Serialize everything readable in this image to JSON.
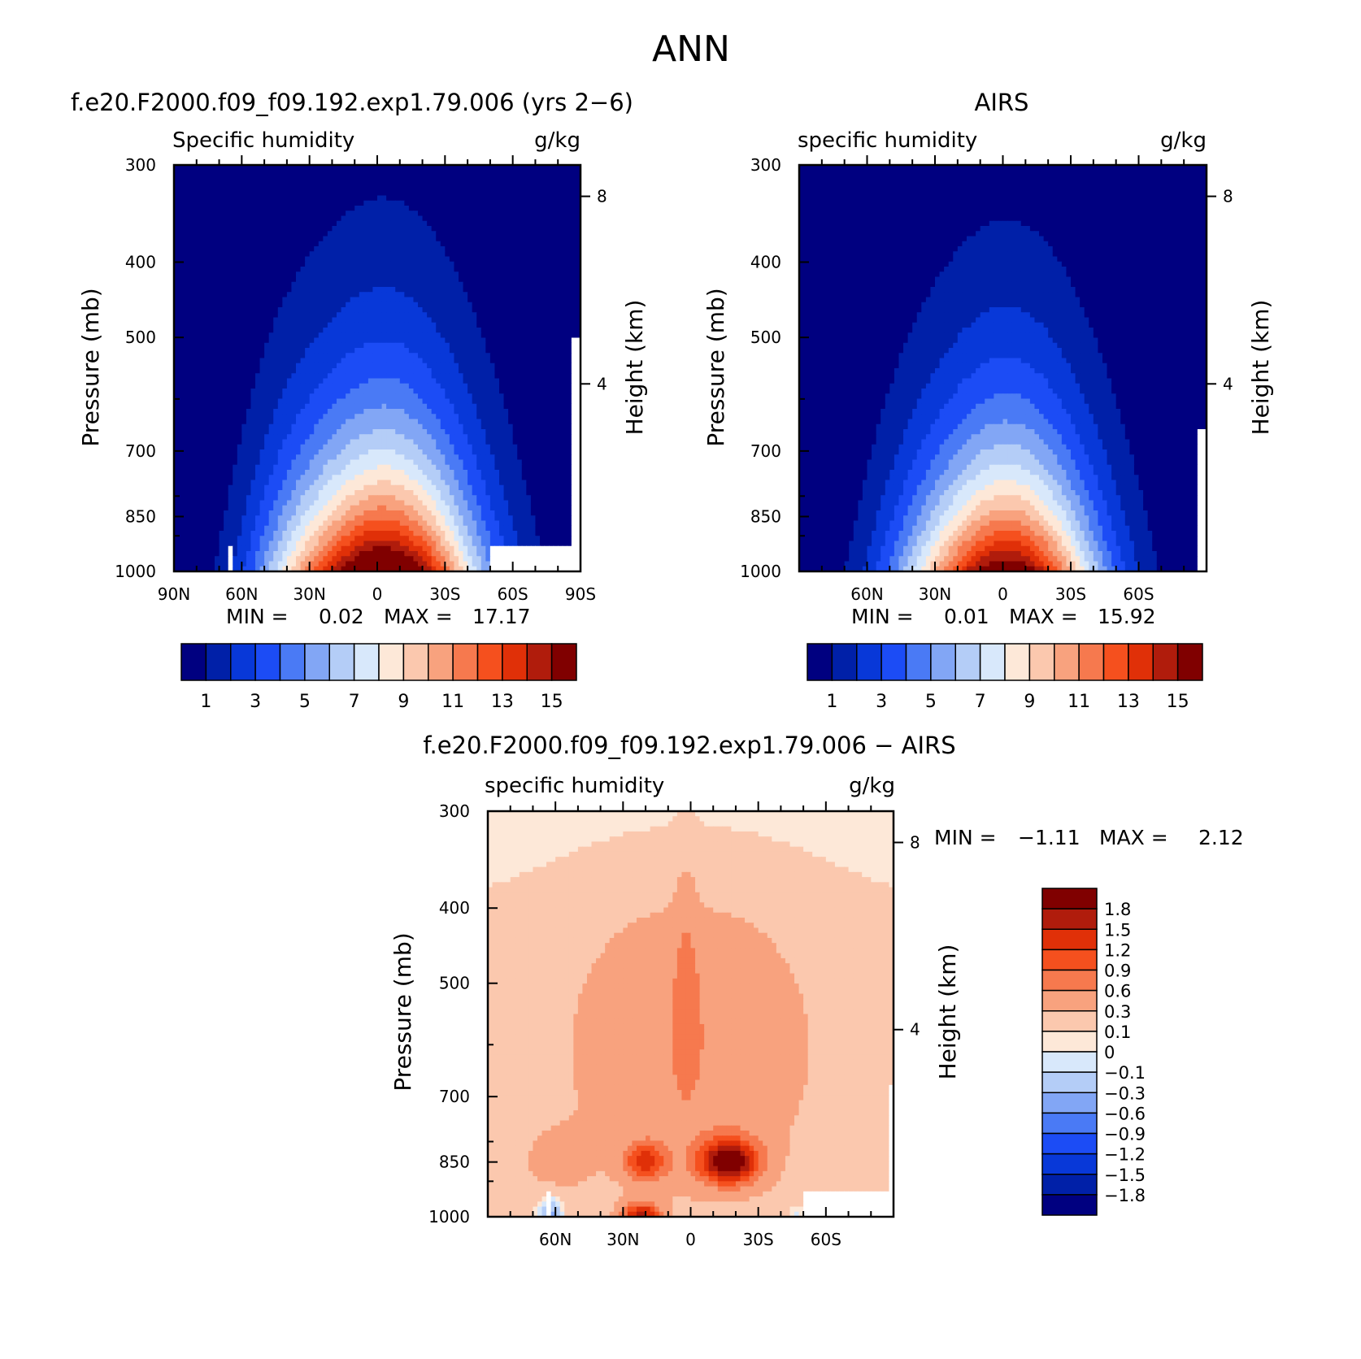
{
  "figure": {
    "title": "ANN"
  },
  "colors": {
    "abs_levels": [
      "#000080",
      "#0020a8",
      "#0838d8",
      "#1c4cf5",
      "#4a7af5",
      "#82a6f5",
      "#b4cdf7",
      "#d8e8fb",
      "#fde8d8",
      "#fbc8ae",
      "#f8a27e",
      "#f6794e",
      "#f5501e",
      "#e03008",
      "#b01c0c",
      "#800000"
    ],
    "diff_levels": [
      "#000080",
      "#0020a8",
      "#0838d8",
      "#1c4cf5",
      "#4a7af5",
      "#82a6f5",
      "#b4cdf7",
      "#d8e8fb",
      "#fde8d8",
      "#fbc8ae",
      "#f8a27e",
      "#f6794e",
      "#f5501e",
      "#e03008",
      "#b01c0c",
      "#800000"
    ]
  },
  "chart_data": [
    {
      "type": "heatmap",
      "panel_title": "f.e20.F2000.f09_f09.192.exp1.79.006 (yrs 2−6)",
      "left_label": "Specific humidity",
      "right_label": "g/kg",
      "ylabel": "Pressure (mb)",
      "y2label": "Height (km)",
      "xticks": [
        "90N",
        "60N",
        "30N",
        "0",
        "30S",
        "60S",
        "90S"
      ],
      "xlim": [
        90,
        -90
      ],
      "yticks": [
        "300",
        "400",
        "500",
        "700",
        "850",
        "1000"
      ],
      "ylim": [
        1000,
        300
      ],
      "y2ticks": [
        "8",
        "4"
      ],
      "min_label": "MIN =",
      "min_value": "0.02",
      "max_label": "MAX =",
      "max_value": "17.17",
      "colorbar_labels": [
        "1",
        "3",
        "5",
        "7",
        "9",
        "11",
        "13",
        "15"
      ],
      "levels": [
        1,
        2,
        3,
        4,
        5,
        6,
        7,
        8,
        9,
        10,
        11,
        12,
        13,
        14,
        15
      ]
    },
    {
      "type": "heatmap",
      "panel_title": "AIRS",
      "left_label": "specific humidity",
      "right_label": "g/kg",
      "ylabel": "Pressure (mb)",
      "y2label": "Height (km)",
      "xticks": [
        "60N",
        "30N",
        "0",
        "30S",
        "60S"
      ],
      "xlim": [
        90,
        -90
      ],
      "yticks": [
        "300",
        "400",
        "500",
        "700",
        "850",
        "1000"
      ],
      "ylim": [
        1000,
        300
      ],
      "y2ticks": [
        "8",
        "4"
      ],
      "min_label": "MIN =",
      "min_value": "0.01",
      "max_label": "MAX =",
      "max_value": "15.92",
      "colorbar_labels": [
        "1",
        "3",
        "5",
        "7",
        "9",
        "11",
        "13",
        "15"
      ],
      "levels": [
        1,
        2,
        3,
        4,
        5,
        6,
        7,
        8,
        9,
        10,
        11,
        12,
        13,
        14,
        15
      ]
    },
    {
      "type": "heatmap",
      "panel_title": "f.e20.F2000.f09_f09.192.exp1.79.006 − AIRS",
      "left_label": "specific humidity",
      "right_label": "g/kg",
      "ylabel": "Pressure (mb)",
      "y2label": "Height (km)",
      "xticks": [
        "60N",
        "30N",
        "0",
        "30S",
        "60S"
      ],
      "xlim": [
        90,
        -90
      ],
      "yticks": [
        "300",
        "400",
        "500",
        "700",
        "850",
        "1000"
      ],
      "ylim": [
        1000,
        300
      ],
      "y2ticks": [
        "8",
        "4"
      ],
      "min_label": "MIN =",
      "min_value": "−1.11",
      "max_label": "MAX =",
      "max_value": "2.12",
      "colorbar_labels": [
        "1.8",
        "1.5",
        "1.2",
        "0.9",
        "0.6",
        "0.3",
        "0.1",
        "0",
        "−0.1",
        "−0.3",
        "−0.6",
        "−0.9",
        "−1.2",
        "−1.5",
        "−1.8"
      ],
      "levels": [
        -1.8,
        -1.5,
        -1.2,
        -0.9,
        -0.6,
        -0.3,
        -0.1,
        0,
        0.1,
        0.3,
        0.6,
        0.9,
        1.2,
        1.5,
        1.8
      ]
    }
  ]
}
